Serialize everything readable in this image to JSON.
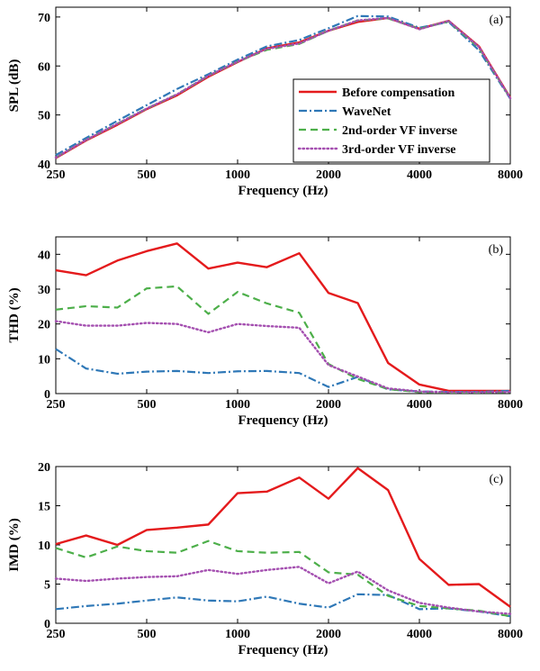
{
  "colors": {
    "Before compensation": "#e41a1c",
    "WaveNet": "#2f78b7",
    "2nd-order VF inverse": "#4daf4a",
    "3rd-order VF inverse": "#a44fb0"
  },
  "legend": {
    "placement": "inside-lower-right of panel (a)",
    "entries": [
      "Before compensation",
      "WaveNet",
      "2nd-order VF inverse",
      "3rd-order VF inverse"
    ]
  },
  "chart_data": [
    {
      "type": "line",
      "panel": "(a)",
      "xlabel": "Frequency (Hz)",
      "ylabel": "SPL (dB)",
      "xscale": "log",
      "xlim": [
        250,
        8000
      ],
      "ylim": [
        40,
        72
      ],
      "x_ticks": [
        250,
        500,
        1000,
        2000,
        4000,
        8000
      ],
      "x_tick_labels": [
        "250",
        "500",
        "1000",
        "2000",
        "4000",
        "8000"
      ],
      "y_ticks": [
        40,
        50,
        60,
        70
      ],
      "y_tick_labels": [
        "40",
        "50",
        "60",
        "70"
      ],
      "x": [
        250,
        315,
        400,
        500,
        630,
        800,
        1000,
        1250,
        1600,
        2000,
        2500,
        3150,
        4000,
        5000,
        6300,
        8000
      ],
      "series": [
        {
          "name": "Before compensation",
          "style": "solid",
          "values": [
            41.2,
            44.8,
            48,
            51.2,
            54,
            57.8,
            60.8,
            63.6,
            64.8,
            67.2,
            69,
            69.8,
            67.6,
            69.2,
            64,
            53.5
          ]
        },
        {
          "name": "WaveNet",
          "style": "dashdot",
          "values": [
            41.8,
            45.3,
            48.8,
            52,
            55.3,
            58.3,
            61.3,
            64,
            65.3,
            67.7,
            70.2,
            70.1,
            67.8,
            69,
            63.2,
            53.3
          ]
        },
        {
          "name": "2nd-order VF inverse",
          "style": "dashed",
          "values": [
            41.3,
            44.9,
            48.2,
            51.3,
            54.2,
            58,
            60.9,
            63.3,
            64.5,
            67.2,
            69.3,
            69.7,
            67.6,
            69.1,
            63.7,
            53.4
          ]
        },
        {
          "name": "3rd-order VF inverse",
          "style": "dotted",
          "values": [
            41.3,
            44.9,
            48.2,
            51.3,
            54.2,
            58,
            60.9,
            63.5,
            64.6,
            67.2,
            69.3,
            69.8,
            67.5,
            69.2,
            63.9,
            53.4
          ]
        }
      ]
    },
    {
      "type": "line",
      "panel": "(b)",
      "xlabel": "Frequency (Hz)",
      "ylabel": "THD (%)",
      "xscale": "log",
      "xlim": [
        250,
        8000
      ],
      "ylim": [
        0,
        45
      ],
      "x_ticks": [
        250,
        500,
        1000,
        2000,
        4000,
        8000
      ],
      "x_tick_labels": [
        "250",
        "500",
        "1000",
        "2000",
        "4000",
        "8000"
      ],
      "y_ticks": [
        0,
        10,
        20,
        30,
        40
      ],
      "y_tick_labels": [
        "0",
        "10",
        "20",
        "30",
        "40"
      ],
      "x": [
        250,
        315,
        400,
        500,
        630,
        800,
        1000,
        1250,
        1600,
        2000,
        2500,
        3150,
        4000,
        5000,
        6300,
        8000
      ],
      "series": [
        {
          "name": "Before compensation",
          "style": "solid",
          "values": [
            35.4,
            34,
            38.2,
            40.9,
            43.1,
            35.9,
            37.6,
            36.3,
            40.3,
            28.9,
            26,
            8.8,
            2.6,
            0.8,
            0.8,
            0.8
          ]
        },
        {
          "name": "WaveNet",
          "style": "dashdot",
          "values": [
            12.8,
            7.2,
            5.7,
            6.3,
            6.5,
            5.9,
            6.4,
            6.5,
            5.9,
            1.9,
            4.8,
            1.2,
            0.6,
            0.5,
            0.5,
            0.8
          ]
        },
        {
          "name": "2nd-order VF inverse",
          "style": "dashed",
          "values": [
            24.1,
            25.1,
            24.7,
            30.2,
            30.8,
            22.9,
            29.2,
            25.9,
            23.2,
            8.5,
            4.2,
            1.3,
            0.4,
            0.3,
            0.3,
            0.4
          ]
        },
        {
          "name": "3rd-order VF inverse",
          "style": "dotted",
          "values": [
            20.8,
            19.5,
            19.5,
            20.3,
            20,
            17.6,
            20,
            19.4,
            18.9,
            8.2,
            4.9,
            1.5,
            0.6,
            0.4,
            0.4,
            0.5
          ]
        }
      ]
    },
    {
      "type": "line",
      "panel": "(c)",
      "xlabel": "Frequency (Hz)",
      "ylabel": "IMD (%)",
      "xscale": "log",
      "xlim": [
        250,
        8000
      ],
      "ylim": [
        0,
        20
      ],
      "x_ticks": [
        250,
        500,
        1000,
        2000,
        4000,
        8000
      ],
      "x_tick_labels": [
        "250",
        "500",
        "1000",
        "2000",
        "4000",
        "8000"
      ],
      "y_ticks": [
        0,
        5,
        10,
        15,
        20
      ],
      "y_tick_labels": [
        "0",
        "5",
        "10",
        "15",
        "20"
      ],
      "x": [
        250,
        315,
        400,
        500,
        630,
        800,
        1000,
        1250,
        1600,
        2000,
        2500,
        3150,
        4000,
        5000,
        6300,
        8000
      ],
      "series": [
        {
          "name": "Before compensation",
          "style": "solid",
          "values": [
            10.1,
            11.2,
            10,
            11.9,
            12.2,
            12.6,
            16.6,
            16.8,
            18.6,
            15.9,
            19.8,
            17,
            8.2,
            4.9,
            5,
            2.1
          ]
        },
        {
          "name": "WaveNet",
          "style": "dashdot",
          "values": [
            1.8,
            2.2,
            2.5,
            2.9,
            3.3,
            2.9,
            2.8,
            3.4,
            2.5,
            2,
            3.7,
            3.6,
            1.8,
            1.9,
            1.5,
            0.9
          ]
        },
        {
          "name": "2nd-order VF inverse",
          "style": "dashed",
          "values": [
            9.6,
            8.4,
            9.8,
            9.2,
            9,
            10.5,
            9.2,
            9,
            9.1,
            6.5,
            6.2,
            3.5,
            2.2,
            1.9,
            1.6,
            0.9
          ]
        },
        {
          "name": "3rd-order VF inverse",
          "style": "dotted",
          "values": [
            5.7,
            5.4,
            5.7,
            5.9,
            6,
            6.8,
            6.3,
            6.8,
            7.2,
            5.1,
            6.6,
            4.2,
            2.6,
            2,
            1.5,
            1.2
          ]
        }
      ]
    }
  ]
}
